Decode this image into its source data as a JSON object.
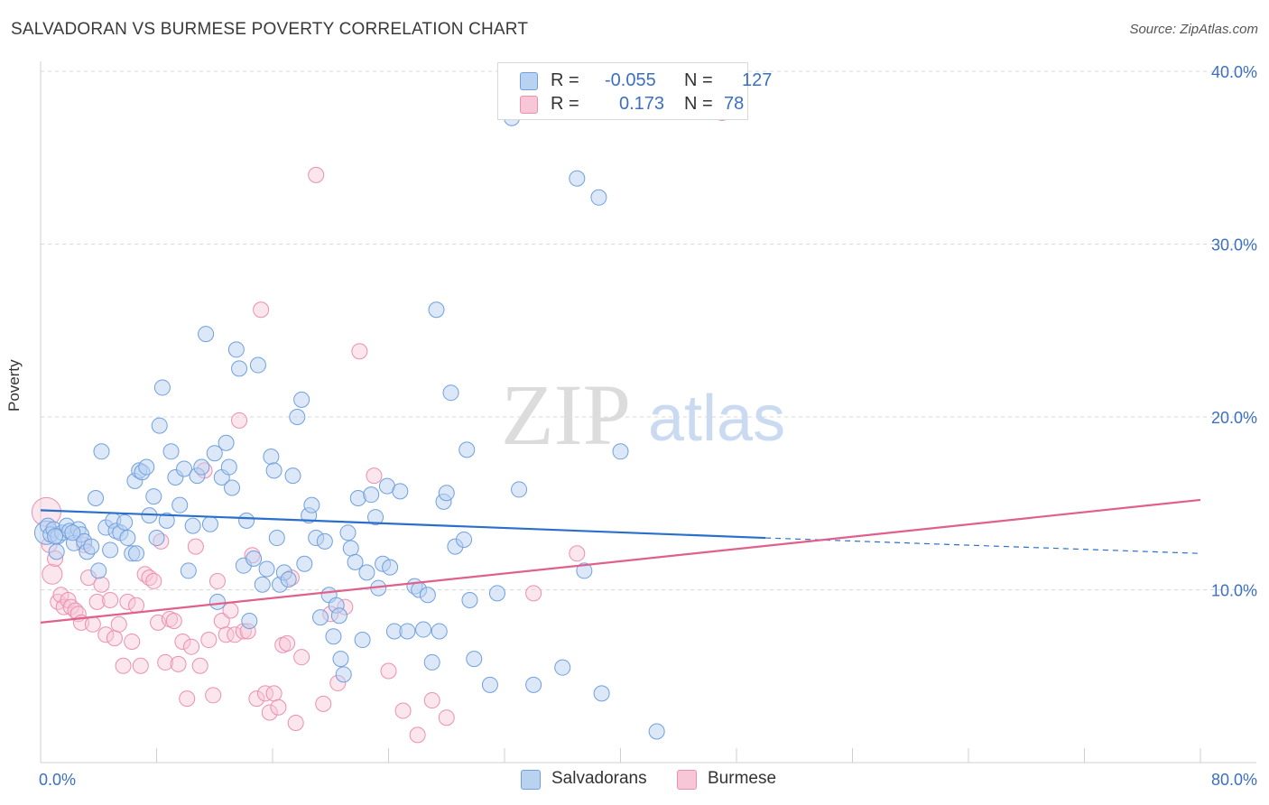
{
  "header": {
    "title": "SALVADORAN VS BURMESE POVERTY CORRELATION CHART",
    "source": "Source: ZipAtlas.com"
  },
  "watermark": {
    "zip": "ZIP",
    "atlas": "atlas"
  },
  "colors": {
    "salvadoran": "#6fa0de",
    "salvadoran_fill": "#b9d2f2",
    "salvadoran_line": "#2a6fcc",
    "burmese": "#ec8fb0",
    "burmese_fill": "#f7c7d7",
    "burmese_line": "#e0608c",
    "axis_text": "#3b6fc4",
    "grid": "#d8d8d8"
  },
  "legend": {
    "r_label": "R =",
    "n_label": "N =",
    "salvadoran": {
      "r": "-0.055",
      "n": "127"
    },
    "burmese": {
      "r": "0.173",
      "n": "78"
    }
  },
  "bottom_legend": {
    "salvadoran": "Salvadorans",
    "burmese": "Burmese"
  },
  "chart_data": {
    "type": "scatter",
    "title": "SALVADORAN VS BURMESE POVERTY CORRELATION CHART",
    "xlabel": "",
    "ylabel": "Poverty",
    "xlim": [
      0,
      80
    ],
    "ylim": [
      0,
      40
    ],
    "x_tick_labels": [
      "0.0%",
      "80.0%"
    ],
    "y_ticks": [
      10,
      20,
      30,
      40
    ],
    "y_tick_labels": [
      "10.0%",
      "20.0%",
      "30.0%",
      "40.0%"
    ],
    "grid": true,
    "legend_position": "top-center",
    "series": [
      {
        "name": "Salvadorans",
        "r": -0.055,
        "n": 127,
        "trend": {
          "x0": 0,
          "y0": 14.6,
          "x1": 50,
          "y1": 13.0,
          "dashed_to_x": 80,
          "dashed_to_y": 12.1
        },
        "points": [
          [
            0.4,
            13.3
          ],
          [
            0.5,
            13.7
          ],
          [
            0.7,
            13.2
          ],
          [
            0.9,
            13.5
          ],
          [
            1.1,
            12.2
          ],
          [
            1.2,
            13.1
          ],
          [
            1.5,
            13.3
          ],
          [
            1.8,
            13.7
          ],
          [
            2.0,
            13.4
          ],
          [
            2.3,
            12.7
          ],
          [
            2.6,
            13.5
          ],
          [
            2.8,
            13.2
          ],
          [
            3.0,
            12.8
          ],
          [
            3.2,
            12.2
          ],
          [
            3.5,
            12.5
          ],
          [
            3.8,
            15.3
          ],
          [
            4.0,
            11.1
          ],
          [
            4.2,
            18.0
          ],
          [
            4.5,
            13.6
          ],
          [
            4.8,
            12.3
          ],
          [
            5.0,
            14.0
          ],
          [
            5.2,
            13.4
          ],
          [
            5.5,
            13.3
          ],
          [
            5.8,
            13.9
          ],
          [
            6.0,
            13.0
          ],
          [
            6.3,
            12.1
          ],
          [
            6.5,
            16.3
          ],
          [
            6.8,
            16.9
          ],
          [
            7.0,
            16.8
          ],
          [
            7.3,
            17.1
          ],
          [
            7.5,
            14.3
          ],
          [
            7.8,
            15.4
          ],
          [
            8.0,
            13.0
          ],
          [
            8.2,
            19.5
          ],
          [
            8.4,
            21.7
          ],
          [
            8.7,
            14.0
          ],
          [
            9.0,
            18.0
          ],
          [
            9.3,
            16.5
          ],
          [
            9.6,
            14.9
          ],
          [
            9.9,
            17.0
          ],
          [
            10.2,
            11.1
          ],
          [
            10.5,
            13.7
          ],
          [
            10.8,
            16.6
          ],
          [
            11.1,
            17.1
          ],
          [
            11.4,
            24.8
          ],
          [
            11.7,
            13.8
          ],
          [
            12.0,
            17.9
          ],
          [
            12.2,
            9.3
          ],
          [
            12.5,
            16.5
          ],
          [
            12.8,
            18.5
          ],
          [
            13.0,
            17.1
          ],
          [
            13.2,
            15.9
          ],
          [
            13.5,
            23.9
          ],
          [
            13.7,
            22.8
          ],
          [
            14.0,
            11.4
          ],
          [
            14.2,
            14.0
          ],
          [
            14.4,
            8.2
          ],
          [
            14.7,
            11.8
          ],
          [
            15.0,
            23.0
          ],
          [
            15.3,
            10.3
          ],
          [
            15.6,
            11.2
          ],
          [
            15.9,
            17.7
          ],
          [
            16.1,
            16.9
          ],
          [
            16.3,
            13.0
          ],
          [
            16.5,
            10.3
          ],
          [
            16.8,
            11.0
          ],
          [
            17.1,
            10.6
          ],
          [
            17.4,
            16.6
          ],
          [
            17.7,
            20.0
          ],
          [
            18.0,
            21.0
          ],
          [
            18.2,
            11.5
          ],
          [
            18.5,
            14.3
          ],
          [
            18.7,
            14.9
          ],
          [
            19.0,
            13.0
          ],
          [
            19.3,
            8.4
          ],
          [
            19.6,
            12.8
          ],
          [
            19.9,
            9.7
          ],
          [
            20.2,
            7.3
          ],
          [
            20.4,
            9.1
          ],
          [
            20.7,
            6.0
          ],
          [
            20.9,
            5.1
          ],
          [
            21.2,
            13.3
          ],
          [
            21.4,
            12.4
          ],
          [
            21.7,
            11.6
          ],
          [
            21.9,
            15.3
          ],
          [
            22.2,
            7.1
          ],
          [
            22.5,
            11.0
          ],
          [
            22.8,
            15.5
          ],
          [
            23.1,
            14.2
          ],
          [
            23.3,
            10.1
          ],
          [
            23.6,
            11.5
          ],
          [
            23.9,
            16.0
          ],
          [
            24.1,
            11.3
          ],
          [
            24.4,
            7.6
          ],
          [
            24.8,
            15.7
          ],
          [
            25.3,
            7.6
          ],
          [
            25.8,
            10.2
          ],
          [
            26.1,
            10.0
          ],
          [
            26.4,
            7.7
          ],
          [
            26.7,
            9.7
          ],
          [
            27.0,
            5.8
          ],
          [
            27.3,
            26.2
          ],
          [
            27.5,
            7.6
          ],
          [
            27.8,
            15.1
          ],
          [
            28.0,
            15.6
          ],
          [
            28.3,
            21.4
          ],
          [
            28.6,
            12.5
          ],
          [
            29.2,
            12.9
          ],
          [
            29.4,
            18.1
          ],
          [
            29.6,
            9.4
          ],
          [
            29.9,
            6.0
          ],
          [
            31.0,
            4.5
          ],
          [
            31.5,
            9.8
          ],
          [
            32.5,
            37.3
          ],
          [
            33.0,
            15.8
          ],
          [
            34.0,
            4.5
          ],
          [
            36.0,
            5.5
          ],
          [
            37.0,
            33.8
          ],
          [
            37.5,
            11.1
          ],
          [
            38.7,
            4.0
          ],
          [
            38.5,
            32.7
          ],
          [
            40.0,
            18.0
          ],
          [
            42.5,
            1.8
          ],
          [
            1.0,
            13.1
          ],
          [
            2.2,
            13.3
          ],
          [
            6.6,
            12.1
          ],
          [
            20.6,
            8.5
          ]
        ]
      },
      {
        "name": "Burmese",
        "r": 0.173,
        "n": 78,
        "trend": {
          "x0": 0,
          "y0": 8.1,
          "x1": 80,
          "y1": 15.2
        },
        "points": [
          [
            0.4,
            14.5
          ],
          [
            0.6,
            12.6
          ],
          [
            0.8,
            10.9
          ],
          [
            1.0,
            11.8
          ],
          [
            1.2,
            9.3
          ],
          [
            1.4,
            9.7
          ],
          [
            1.6,
            9.0
          ],
          [
            1.9,
            9.4
          ],
          [
            2.1,
            9.0
          ],
          [
            2.4,
            8.8
          ],
          [
            2.6,
            8.6
          ],
          [
            2.8,
            8.1
          ],
          [
            3.0,
            12.6
          ],
          [
            3.3,
            10.7
          ],
          [
            3.6,
            8.0
          ],
          [
            3.9,
            9.3
          ],
          [
            4.2,
            10.3
          ],
          [
            4.5,
            7.4
          ],
          [
            4.8,
            9.4
          ],
          [
            5.1,
            7.2
          ],
          [
            5.4,
            8.0
          ],
          [
            5.7,
            5.6
          ],
          [
            6.0,
            9.3
          ],
          [
            6.3,
            7.0
          ],
          [
            6.6,
            9.1
          ],
          [
            6.9,
            5.6
          ],
          [
            7.2,
            10.9
          ],
          [
            7.5,
            10.7
          ],
          [
            7.8,
            10.5
          ],
          [
            8.1,
            8.1
          ],
          [
            8.3,
            12.8
          ],
          [
            8.6,
            5.8
          ],
          [
            8.9,
            8.3
          ],
          [
            9.2,
            8.2
          ],
          [
            9.5,
            5.7
          ],
          [
            9.8,
            7.0
          ],
          [
            10.1,
            3.7
          ],
          [
            10.4,
            6.7
          ],
          [
            10.7,
            12.5
          ],
          [
            11.0,
            5.6
          ],
          [
            11.3,
            16.9
          ],
          [
            11.6,
            7.1
          ],
          [
            11.9,
            3.9
          ],
          [
            12.2,
            10.5
          ],
          [
            12.5,
            8.2
          ],
          [
            12.8,
            7.4
          ],
          [
            13.1,
            8.8
          ],
          [
            13.4,
            7.4
          ],
          [
            13.7,
            19.8
          ],
          [
            14.0,
            7.6
          ],
          [
            14.3,
            7.6
          ],
          [
            14.6,
            12.0
          ],
          [
            14.9,
            3.7
          ],
          [
            15.2,
            26.2
          ],
          [
            15.5,
            4.0
          ],
          [
            15.8,
            2.9
          ],
          [
            16.1,
            4.0
          ],
          [
            16.4,
            3.2
          ],
          [
            16.7,
            6.8
          ],
          [
            17.0,
            6.9
          ],
          [
            17.3,
            10.7
          ],
          [
            17.6,
            2.3
          ],
          [
            18.0,
            6.1
          ],
          [
            19.0,
            34.0
          ],
          [
            19.5,
            3.4
          ],
          [
            20.0,
            8.6
          ],
          [
            20.5,
            4.6
          ],
          [
            21.0,
            9.0
          ],
          [
            22.0,
            23.8
          ],
          [
            23.0,
            16.6
          ],
          [
            24.0,
            5.3
          ],
          [
            25.0,
            3.0
          ],
          [
            26.0,
            1.6
          ],
          [
            27.0,
            3.6
          ],
          [
            28.0,
            2.6
          ],
          [
            34.0,
            9.8
          ],
          [
            37.0,
            12.1
          ],
          [
            47.0,
            37.6
          ]
        ]
      }
    ]
  }
}
